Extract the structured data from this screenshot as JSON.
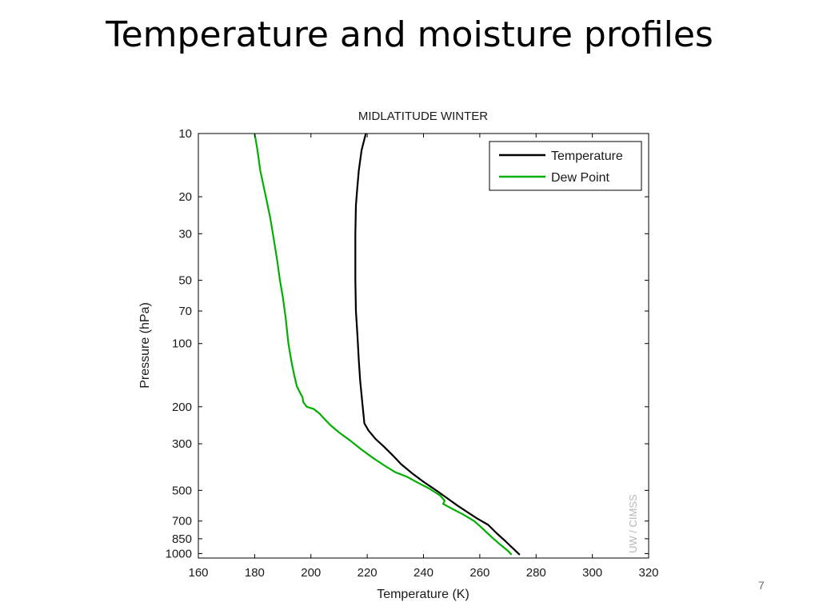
{
  "slide": {
    "title": "Temperature and moisture profiles",
    "page_number": "7"
  },
  "chart_data": {
    "type": "line",
    "title": "MIDLATITUDE WINTER",
    "xlabel": "Temperature (K)",
    "ylabel": "Pressure (hPa)",
    "xlim": [
      160,
      320
    ],
    "ylim": [
      10,
      1050
    ],
    "yscale": "log",
    "yaxis_inverted": true,
    "x_ticks": [
      160,
      180,
      200,
      220,
      240,
      260,
      280,
      300,
      320
    ],
    "y_ticks": [
      10,
      20,
      30,
      50,
      70,
      100,
      200,
      300,
      500,
      700,
      850,
      1000
    ],
    "grid": false,
    "legend_position": "top-right",
    "watermark": "UW / CIMSS",
    "series": [
      {
        "name": "Temperature",
        "color": "#000000",
        "points": [
          [
            219.5,
            10
          ],
          [
            218,
            12
          ],
          [
            217,
            15
          ],
          [
            216.5,
            18
          ],
          [
            216,
            22
          ],
          [
            215.8,
            30
          ],
          [
            215.8,
            40
          ],
          [
            215.8,
            50
          ],
          [
            216,
            70
          ],
          [
            216.5,
            90
          ],
          [
            217,
            120
          ],
          [
            217.5,
            150
          ],
          [
            218.4,
            200
          ],
          [
            219,
            240
          ],
          [
            220.5,
            260
          ],
          [
            223,
            285
          ],
          [
            226,
            310
          ],
          [
            229,
            340
          ],
          [
            232,
            375
          ],
          [
            236,
            415
          ],
          [
            240,
            455
          ],
          [
            244,
            495
          ],
          [
            248,
            540
          ],
          [
            252,
            590
          ],
          [
            256,
            640
          ],
          [
            259,
            680
          ],
          [
            263,
            730
          ],
          [
            266,
            800
          ],
          [
            269,
            870
          ],
          [
            272,
            950
          ],
          [
            274.2,
            1013
          ]
        ]
      },
      {
        "name": "Dew Point",
        "color": "#00b000",
        "points": [
          [
            180,
            10
          ],
          [
            181,
            12
          ],
          [
            182,
            15
          ],
          [
            184,
            20
          ],
          [
            185.5,
            25
          ],
          [
            186.5,
            30
          ],
          [
            188,
            40
          ],
          [
            189,
            50
          ],
          [
            190,
            60
          ],
          [
            191,
            75
          ],
          [
            192,
            100
          ],
          [
            193,
            120
          ],
          [
            194,
            140
          ],
          [
            195,
            160
          ],
          [
            196.5,
            175
          ],
          [
            197,
            180
          ],
          [
            197.3,
            190
          ],
          [
            198.5,
            200
          ],
          [
            201,
            205
          ],
          [
            203,
            215
          ],
          [
            205,
            230
          ],
          [
            207,
            245
          ],
          [
            210,
            265
          ],
          [
            214,
            290
          ],
          [
            218,
            320
          ],
          [
            222,
            350
          ],
          [
            226,
            380
          ],
          [
            230,
            410
          ],
          [
            234,
            430
          ],
          [
            238,
            460
          ],
          [
            242,
            490
          ],
          [
            246,
            530
          ],
          [
            247,
            550
          ],
          [
            247.5,
            560
          ],
          [
            247,
            580
          ],
          [
            251,
            620
          ],
          [
            254,
            650
          ],
          [
            258,
            700
          ],
          [
            261,
            760
          ],
          [
            264,
            830
          ],
          [
            267,
            900
          ],
          [
            270,
            970
          ],
          [
            271.3,
            1013
          ]
        ]
      }
    ]
  }
}
